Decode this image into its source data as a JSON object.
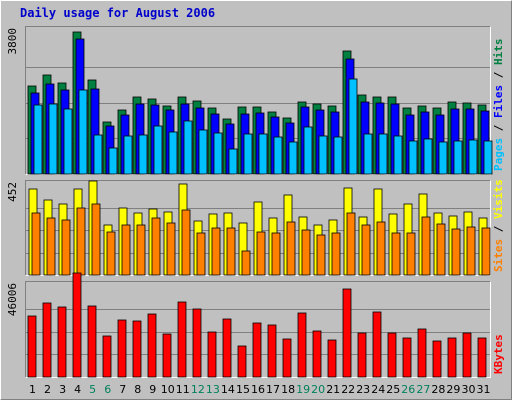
{
  "colors": {
    "background": "#c0c0c0",
    "hits": "#008040",
    "files": "#0000ff",
    "pages": "#00c0ff",
    "visits": "#ffff00",
    "sites": "#ff8000",
    "kbytes": "#ff0000",
    "weekday_label": "#000000",
    "weekend_label": "#00805c"
  },
  "chart_data": {
    "type": "bar",
    "title": "Daily usage for August 2006",
    "categories": [
      "1",
      "2",
      "3",
      "4",
      "5",
      "6",
      "7",
      "8",
      "9",
      "10",
      "11",
      "12",
      "13",
      "14",
      "15",
      "16",
      "17",
      "18",
      "19",
      "20",
      "21",
      "22",
      "23",
      "24",
      "25",
      "26",
      "27",
      "28",
      "29",
      "30",
      "31"
    ],
    "weekend_days": [
      "5",
      "6",
      "12",
      "13",
      "19",
      "20",
      "26",
      "27"
    ],
    "panels": [
      {
        "name": "hits-files-pages",
        "ytick": "3800",
        "ymax": 3800,
        "side_labels": [
          {
            "text": "Pages",
            "color": "#00c0ff"
          },
          {
            "text": " / ",
            "color": "#000000"
          },
          {
            "text": "Files",
            "color": "#0000ff"
          },
          {
            "text": " / ",
            "color": "#000000"
          },
          {
            "text": "Hits",
            "color": "#008040"
          }
        ],
        "series": [
          {
            "name": "Hits",
            "color": "#008040",
            "values": [
              2340,
              2640,
              2420,
              3780,
              2500,
              1380,
              1700,
              2040,
              1980,
              1820,
              2040,
              1930,
              1760,
              1460,
              1790,
              1770,
              1660,
              1490,
              1920,
              1860,
              1800,
              3280,
              2100,
              2040,
              2050,
              1760,
              1820,
              1760,
              1900,
              1890,
              1830
            ]
          },
          {
            "name": "Files",
            "color": "#0000ff",
            "values": [
              2150,
              2400,
              2230,
              3600,
              2260,
              1270,
              1580,
              1860,
              1830,
              1710,
              1860,
              1760,
              1600,
              1330,
              1600,
              1630,
              1510,
              1360,
              1770,
              1710,
              1650,
              3050,
              1900,
              1880,
              1870,
              1580,
              1660,
              1570,
              1740,
              1720,
              1670
            ]
          },
          {
            "name": "Pages",
            "color": "#00c0ff",
            "values": [
              1840,
              1850,
              1720,
              2230,
              1040,
              700,
              1000,
              1030,
              1270,
              1120,
              1400,
              1180,
              1100,
              670,
              1050,
              1060,
              980,
              860,
              1260,
              1010,
              990,
              2520,
              1050,
              1060,
              1000,
              870,
              930,
              850,
              870,
              900,
              870
            ]
          }
        ]
      },
      {
        "name": "visits-sites",
        "ytick": "452",
        "ymax": 452,
        "side_labels": [
          {
            "text": "Sites",
            "color": "#ff8000"
          },
          {
            "text": " / ",
            "color": "#000000"
          },
          {
            "text": "Visits",
            "color": "#ffff00"
          }
        ],
        "series": [
          {
            "name": "Visits",
            "color": "#ffff00",
            "values": [
              430,
              375,
              355,
              430,
              472,
              250,
              335,
              310,
              330,
              315,
              455,
              270,
              305,
              310,
              260,
              365,
              285,
              400,
              290,
              250,
              275,
              435,
              290,
              430,
              305,
              355,
              405,
              310,
              295,
              315,
              285
            ]
          },
          {
            "name": "Sites",
            "color": "#ff8000",
            "values": [
              310,
              285,
              275,
              335,
              358,
              215,
              250,
              250,
              288,
              262,
              325,
              210,
              238,
              238,
              123,
              215,
              213,
              265,
              225,
              200,
              212,
              312,
              250,
              268,
              210,
              210,
              290,
              255,
              233,
              243,
              235
            ]
          }
        ]
      },
      {
        "name": "kbytes",
        "ytick": "46006",
        "ymax": 46006,
        "side_labels": [
          {
            "text": "KBytes",
            "color": "#ff0000"
          }
        ],
        "series": [
          {
            "name": "KBytes",
            "color": "#ff0000",
            "values": [
              30800,
              37500,
              35400,
              52400,
              36000,
              20800,
              28800,
              28400,
              31800,
              21900,
              37800,
              34200,
              22500,
              29500,
              15800,
              27200,
              26500,
              19300,
              32500,
              23500,
              18800,
              44300,
              22300,
              32700,
              22000,
              19700,
              24100,
              18000,
              19500,
              22200,
              19800
            ]
          }
        ]
      }
    ]
  }
}
